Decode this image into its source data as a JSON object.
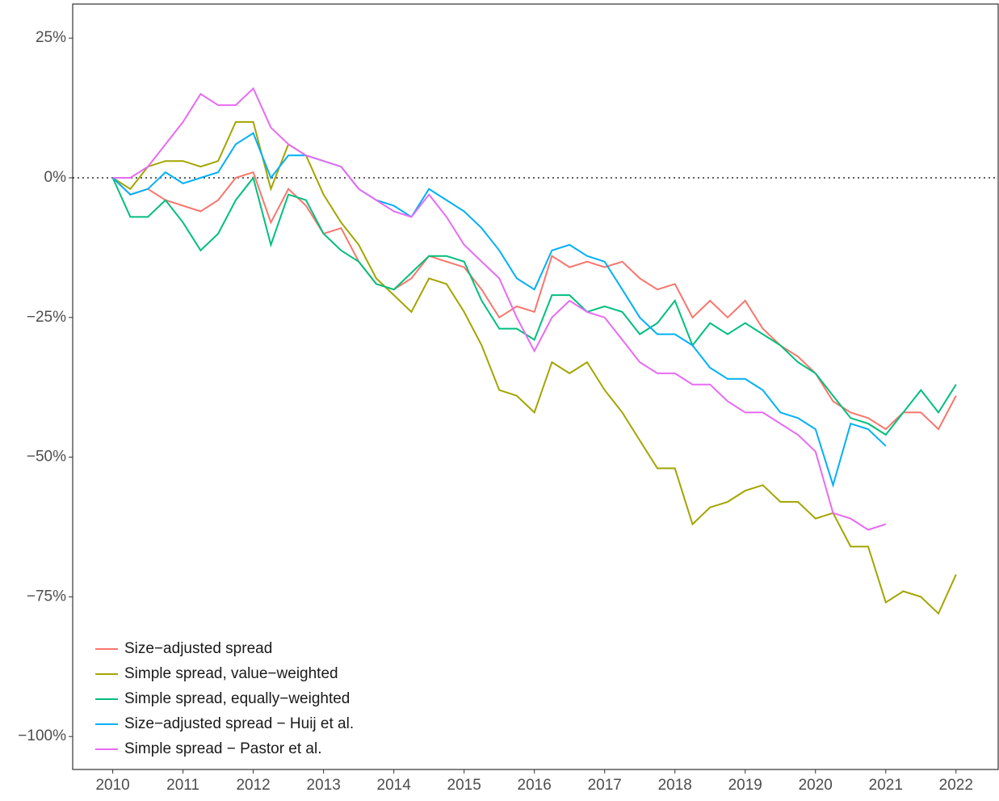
{
  "chart_data": {
    "type": "line",
    "x": [
      2010,
      2010.25,
      2010.5,
      2010.75,
      2011,
      2011.25,
      2011.5,
      2011.75,
      2012,
      2012.25,
      2012.5,
      2012.75,
      2013,
      2013.25,
      2013.5,
      2013.75,
      2014,
      2014.25,
      2014.5,
      2014.75,
      2015,
      2015.25,
      2015.5,
      2015.75,
      2016,
      2016.25,
      2016.5,
      2016.75,
      2017,
      2017.25,
      2017.5,
      2017.75,
      2018,
      2018.25,
      2018.5,
      2018.75,
      2019,
      2019.25,
      2019.5,
      2019.75,
      2020,
      2020.25,
      2020.5,
      2020.75,
      2021,
      2021.25,
      2021.5,
      2021.75,
      2022
    ],
    "series": [
      {
        "name": "Size−adjusted spread",
        "color": "#F8766D",
        "values": [
          0,
          -3,
          -2,
          -4,
          -5,
          -6,
          -4,
          0,
          1,
          -8,
          -2,
          -5,
          -10,
          -9,
          -15,
          -19,
          -20,
          -18,
          -14,
          -15,
          -16,
          -20,
          -25,
          -23,
          -24,
          -14,
          -16,
          -15,
          -16,
          -15,
          -18,
          -20,
          -19,
          -25,
          -22,
          -25,
          -22,
          -27,
          -30,
          -32,
          -35,
          -40,
          -42,
          -43,
          -45,
          -42,
          -42,
          -45,
          -39
        ]
      },
      {
        "name": "Simple spread, value−weighted",
        "color": "#A3A500",
        "values": [
          0,
          -2,
          2,
          3,
          3,
          2,
          3,
          10,
          10,
          -2,
          6,
          4,
          -3,
          -8,
          -12,
          -18,
          -21,
          -24,
          -18,
          -19,
          -24,
          -30,
          -38,
          -39,
          -42,
          -33,
          -35,
          -33,
          -38,
          -42,
          -47,
          -52,
          -52,
          -62,
          -59,
          -58,
          -56,
          -55,
          -58,
          -58,
          -61,
          -60,
          -66,
          -66,
          -76,
          -74,
          -75,
          -78,
          -71
        ]
      },
      {
        "name": "Simple spread, equally−weighted",
        "color": "#00BF7D",
        "values": [
          0,
          -7,
          -7,
          -4,
          -8,
          -13,
          -10,
          -4,
          0,
          -12,
          -3,
          -4,
          -10,
          -13,
          -15,
          -19,
          -20,
          -17,
          -14,
          -14,
          -15,
          -22,
          -27,
          -27,
          -29,
          -21,
          -21,
          -24,
          -23,
          -24,
          -28,
          -26,
          -22,
          -30,
          -26,
          -28,
          -26,
          -28,
          -30,
          -33,
          -35,
          -39,
          -43,
          -44,
          -46,
          -42,
          -38,
          -42,
          -37
        ]
      },
      {
        "name": "Size−adjusted spread − Huij et al.",
        "color": "#00B0F6",
        "values": [
          0,
          -3,
          -2,
          1,
          -1,
          0,
          1,
          6,
          8,
          0,
          4,
          4,
          3,
          2,
          -2,
          -4,
          -5,
          -7,
          -2,
          -4,
          -6,
          -9,
          -13,
          -18,
          -20,
          -13,
          -12,
          -14,
          -15,
          -20,
          -25,
          -28,
          -28,
          -30,
          -34,
          -36,
          -36,
          -38,
          -42,
          -43,
          -45,
          -55,
          -44,
          -45,
          -48,
          null,
          null,
          null,
          null
        ]
      },
      {
        "name": "Simple spread − Pastor et al.",
        "color": "#E76BF3",
        "values": [
          0,
          0,
          2,
          6,
          10,
          15,
          13,
          13,
          16,
          9,
          6,
          4,
          3,
          2,
          -2,
          -4,
          -6,
          -7,
          -3,
          -7,
          -12,
          -15,
          -18,
          -25,
          -31,
          -25,
          -22,
          -24,
          -25,
          -29,
          -33,
          -35,
          -35,
          -37,
          -37,
          -40,
          -42,
          -42,
          -44,
          -46,
          -49,
          -60,
          -61,
          -63,
          -62,
          null,
          null,
          null,
          null
        ]
      }
    ],
    "xlim": [
      2009.43,
      2022.6
    ],
    "ylim": [
      -105.9,
      31.1
    ],
    "xticks": [
      2010,
      2011,
      2012,
      2013,
      2014,
      2015,
      2016,
      2017,
      2018,
      2019,
      2020,
      2021,
      2022
    ],
    "yticks": [
      {
        "value": 25,
        "label": "25%"
      },
      {
        "value": 0,
        "label": "0%"
      },
      {
        "value": -25,
        "label": "−25%"
      },
      {
        "value": -50,
        "label": "−50%"
      },
      {
        "value": -75,
        "label": "−75%"
      },
      {
        "value": -100,
        "label": "−100%"
      }
    ],
    "zero_line": 0,
    "legend": "bottom-left"
  }
}
